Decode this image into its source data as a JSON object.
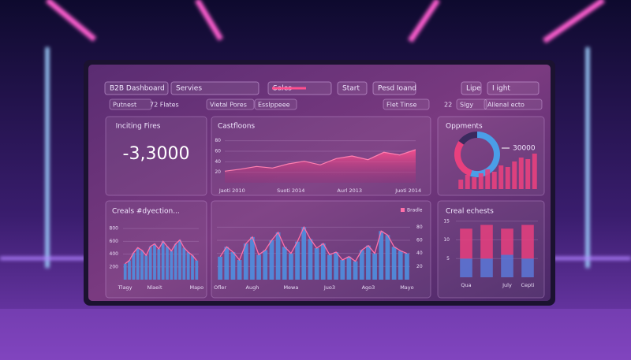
{
  "toolbar": {
    "items": [
      "B2B Dashboard",
      "Servies",
      "Sales",
      "Start",
      "Pesd Ioand",
      "Lipe",
      "I ight"
    ]
  },
  "filters": {
    "items": [
      "Putnest",
      "72 Flates",
      "Vietal Pores",
      "Esslppeee",
      "Flet Tinse",
      "22",
      "Slgy",
      "Allenal ecto"
    ]
  },
  "kpi": {
    "title": "Inciting Fires",
    "value": "-3,3000"
  },
  "chart_data": [
    {
      "type": "area",
      "title": "Castfloons",
      "color": "#e8407e",
      "categories": [
        "Jaoti 2010",
        null,
        null,
        null,
        "Suoti 2014",
        null,
        null,
        null,
        "Aurl 2013",
        null,
        null,
        null,
        "Juoti 2014"
      ],
      "values": [
        22,
        26,
        31,
        28,
        36,
        41,
        34,
        46,
        51,
        44,
        58,
        53,
        63
      ],
      "ylim": [
        0,
        90
      ],
      "yticks": [
        20,
        40,
        60,
        80
      ]
    },
    {
      "type": "pie",
      "title": "Oppments",
      "annotation": "30000",
      "values": [
        55,
        30,
        15
      ],
      "colors": [
        "#4a9ee8",
        "#e8407e",
        "#3a2a5e"
      ]
    },
    {
      "type": "bar",
      "color": "#e8407e",
      "values": [
        12,
        18,
        15,
        20,
        25,
        22,
        30,
        28,
        35,
        40,
        38,
        45
      ],
      "ylim": [
        0,
        50
      ]
    },
    {
      "type": "bar",
      "title": "Creals #dyection...",
      "color": "#4f8fe0",
      "line": true,
      "categories": [
        "Tlagy",
        null,
        null,
        null,
        null,
        null,
        null,
        "Nlaeit",
        null,
        null,
        null,
        null,
        null,
        null,
        null,
        null,
        null,
        "Mapo"
      ],
      "values": [
        250,
        300,
        420,
        500,
        460,
        380,
        520,
        560,
        480,
        600,
        520,
        450,
        560,
        620,
        500,
        430,
        380,
        300
      ],
      "ylim": [
        0,
        900
      ],
      "yticks": [
        200,
        400,
        600,
        800
      ]
    },
    {
      "type": "bar",
      "color": "#4f8fe0",
      "line": true,
      "series_name": "Bradle",
      "categories": [
        "Ofler",
        null,
        null,
        null,
        null,
        "Augh",
        null,
        null,
        null,
        null,
        null,
        "Mewa",
        null,
        null,
        null,
        null,
        null,
        "Juo3",
        null,
        null,
        null,
        null,
        null,
        "Ago3",
        null,
        null,
        null,
        null,
        null,
        "Mayo"
      ],
      "values": [
        35,
        50,
        42,
        30,
        55,
        65,
        38,
        45,
        60,
        72,
        50,
        40,
        58,
        80,
        62,
        48,
        55,
        38,
        42,
        30,
        35,
        28,
        45,
        52,
        40,
        74,
        68,
        50,
        44,
        40
      ],
      "ylim": [
        0,
        90
      ],
      "yticks": [
        20,
        40,
        60,
        80
      ]
    },
    {
      "type": "stacked",
      "title": "Creal echests",
      "categories": [
        "Qua",
        null,
        "July",
        "Cepti"
      ],
      "series": [
        {
          "color": "#5a78d8",
          "values": [
            5,
            5,
            6,
            5
          ]
        },
        {
          "color": "#e8407e",
          "values": [
            8,
            9,
            7,
            9
          ]
        }
      ],
      "ylim": [
        0,
        16
      ],
      "yticks": [
        5,
        10,
        15
      ]
    }
  ]
}
